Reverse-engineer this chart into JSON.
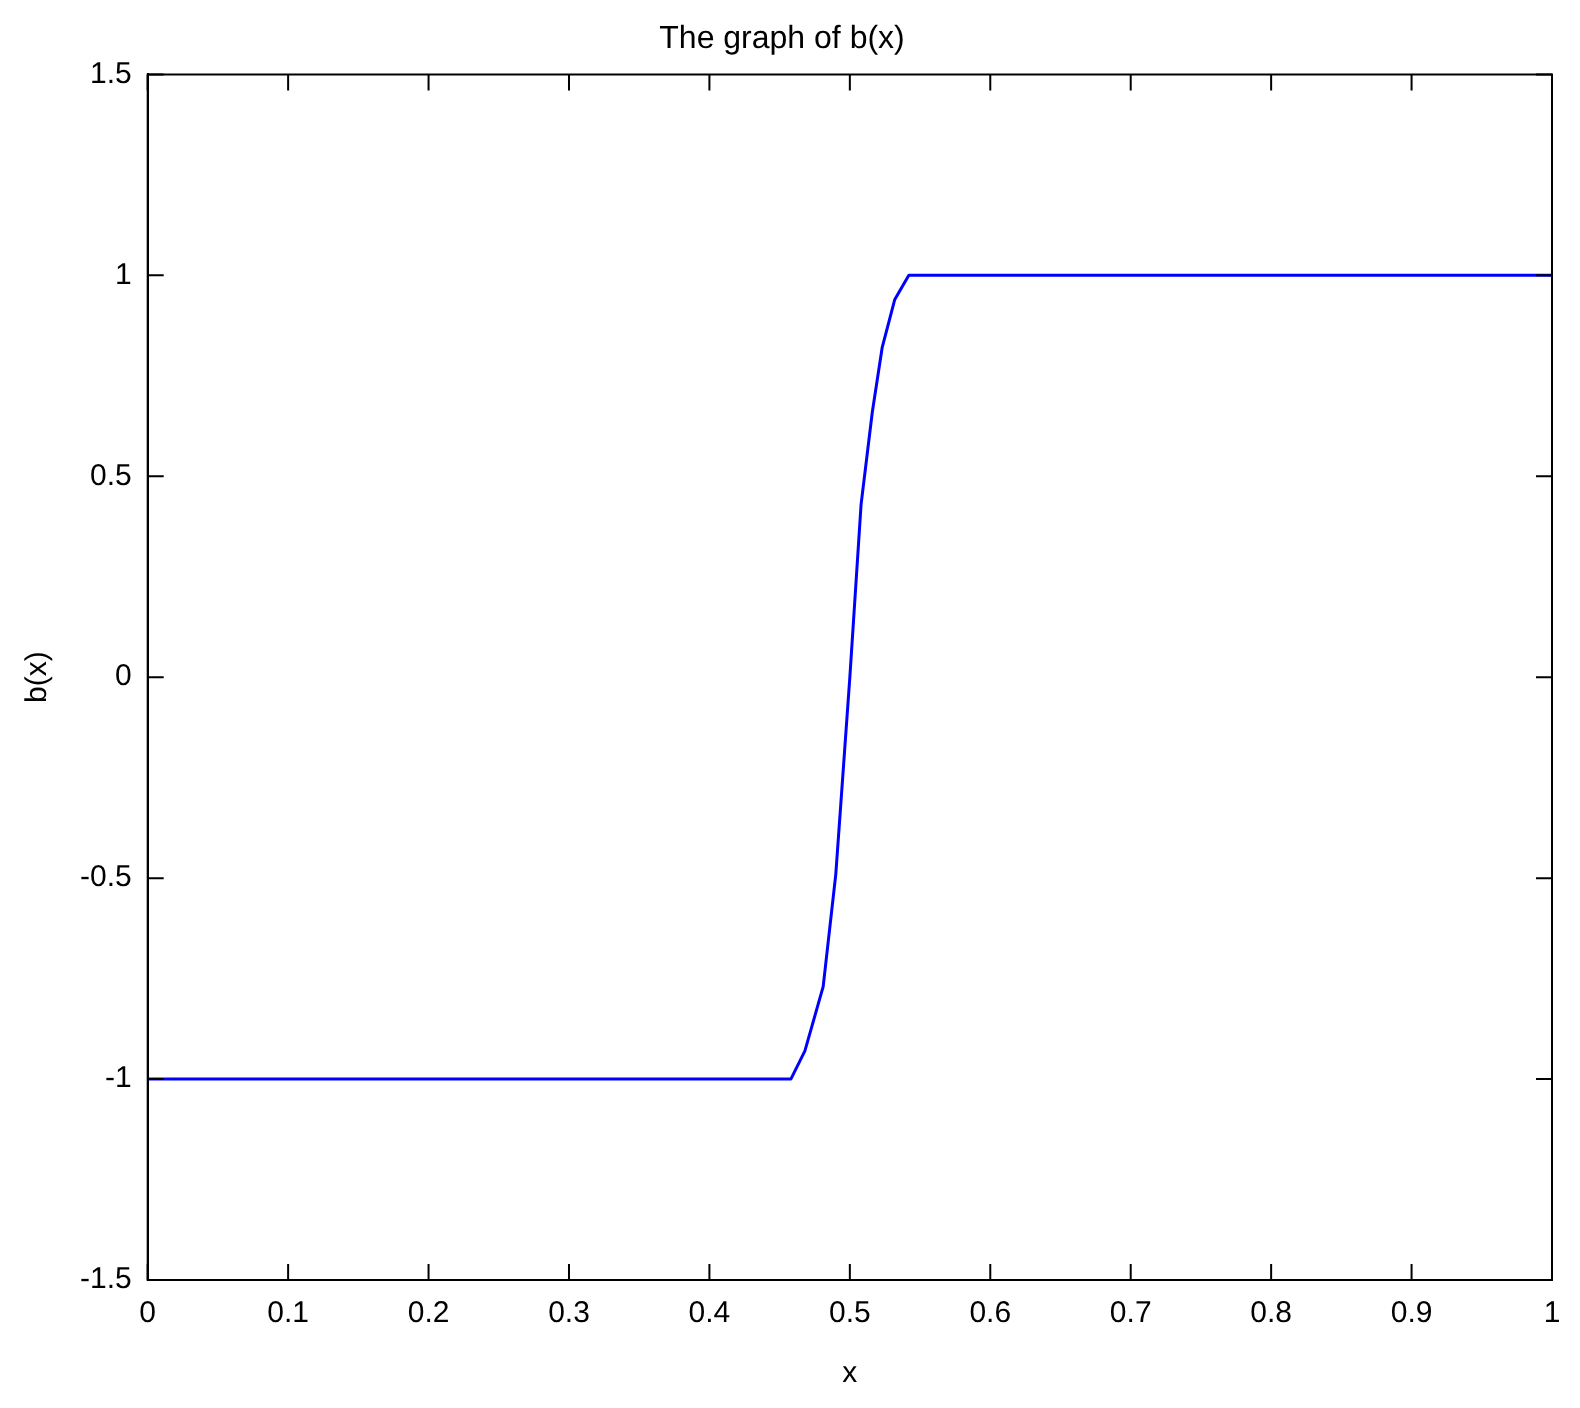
{
  "chart_data": {
    "type": "line",
    "title": "The graph of b(x)",
    "xlabel": "x",
    "ylabel": "b(x)",
    "x": [
      0,
      0.458,
      0.468,
      0.481,
      0.49,
      0.5,
      0.508,
      0.516,
      0.523,
      0.532,
      0.542,
      1
    ],
    "series": [
      {
        "color": "#0000ff",
        "values": [
          -1,
          -1,
          -0.93,
          -0.77,
          -0.49,
          0,
          0.43,
          0.66,
          0.82,
          0.94,
          1,
          1
        ]
      }
    ],
    "xlim": [
      0,
      1
    ],
    "xticks": [
      0,
      0.1,
      0.2,
      0.3,
      0.4,
      0.5,
      0.6,
      0.7,
      0.8,
      0.9,
      1
    ],
    "ylim": [
      -1.5,
      1.5
    ],
    "yticks": [
      -1.5,
      -1,
      -0.5,
      0,
      0.5,
      1,
      1.5
    ],
    "grid": false,
    "legend": false,
    "marker": "none",
    "line_style": "solid"
  }
}
